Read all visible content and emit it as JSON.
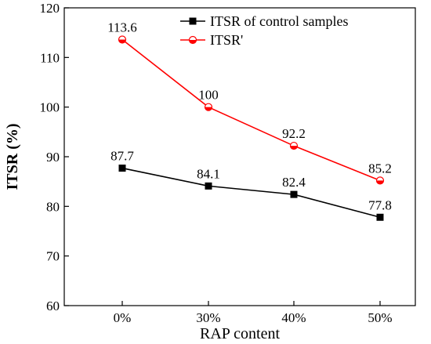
{
  "chart_data": {
    "type": "line",
    "title": "",
    "xlabel": "RAP content",
    "ylabel": "ITSR (%)",
    "categories": [
      "0%",
      "30%",
      "40%",
      "50%"
    ],
    "ylim": [
      60,
      120
    ],
    "yticks": [
      60,
      70,
      80,
      90,
      100,
      110,
      120
    ],
    "grid": false,
    "legend_position": "top-right",
    "series": [
      {
        "name": "ITSR of control samples",
        "values": [
          87.7,
          84.1,
          82.4,
          77.8
        ],
        "labels": [
          "87.7",
          "84.1",
          "82.4",
          "77.8"
        ],
        "color": "#000000",
        "marker": "filled-square"
      },
      {
        "name": "ITSR'",
        "values": [
          113.6,
          100,
          92.2,
          85.2
        ],
        "labels": [
          "113.6",
          "100",
          "92.2",
          "85.2"
        ],
        "color": "#ff0000",
        "marker": "half-filled-circle"
      }
    ]
  }
}
